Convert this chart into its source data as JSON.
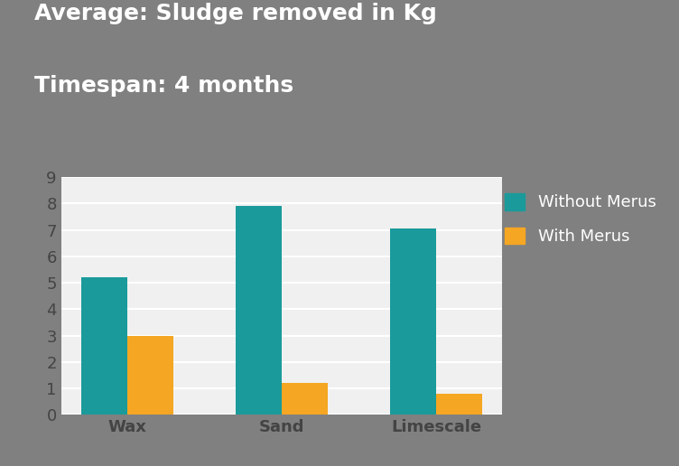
{
  "title_line1": "Average: Sludge removed in Kg",
  "title_line2": "Timespan: 4 months",
  "categories": [
    "Wax",
    "Sand",
    "Limescale"
  ],
  "without_merus": [
    5.2,
    7.9,
    7.05
  ],
  "with_merus": [
    3.0,
    1.2,
    0.8
  ],
  "bar_color_without": "#1a9a9a",
  "bar_color_with": "#f5a623",
  "background_outer": "#808080",
  "background_inner": "#f0f0f0",
  "ylim": [
    0,
    9
  ],
  "yticks": [
    0,
    1,
    2,
    3,
    4,
    5,
    6,
    7,
    8,
    9
  ],
  "legend_without": "Without Merus",
  "legend_with": "With Merus",
  "title_fontsize": 18,
  "tick_fontsize": 13,
  "legend_fontsize": 13,
  "bar_width": 0.3,
  "title_color": "#ffffff",
  "tick_color": "#444444",
  "grid_color": "#ffffff"
}
